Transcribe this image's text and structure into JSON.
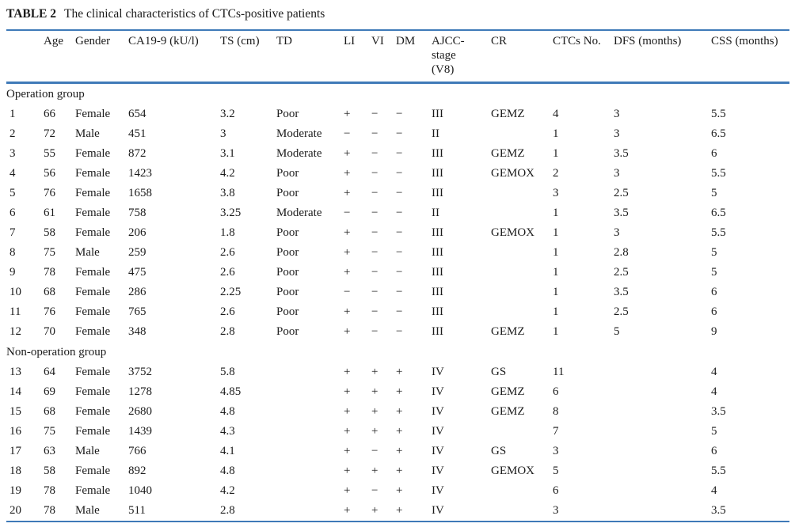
{
  "title": {
    "label": "TABLE 2",
    "text": "The clinical characteristics of CTCs-positive patients"
  },
  "colors": {
    "rule_blue": "#3f7ab8",
    "text": "#1b1b1b"
  },
  "table": {
    "columns": [
      "",
      "Age",
      "Gender",
      "CA19-9 (kU/l)",
      "TS (cm)",
      "TD",
      "LI",
      "VI",
      "DM",
      "AJCC-\nstage\n(V8)",
      "CR",
      "CTCs No.",
      "DFS (months)",
      "CSS (months)"
    ],
    "column_keys": [
      "num",
      "age",
      "gender",
      "ca19-9",
      "ts",
      "td",
      "li",
      "vi",
      "dm",
      "ajcc-stage",
      "cr",
      "ctcs-no",
      "dfs",
      "css"
    ],
    "groups": [
      {
        "label": "Operation group",
        "rows": [
          [
            "1",
            "66",
            "Female",
            "654",
            "3.2",
            "Poor",
            "+",
            "−",
            "−",
            "III",
            "GEMZ",
            "4",
            "3",
            "5.5"
          ],
          [
            "2",
            "72",
            "Male",
            "451",
            "3",
            "Moderate",
            "−",
            "−",
            "−",
            "II",
            "",
            "1",
            "3",
            "6.5"
          ],
          [
            "3",
            "55",
            "Female",
            "872",
            "3.1",
            "Moderate",
            "+",
            "−",
            "−",
            "III",
            "GEMZ",
            "1",
            "3.5",
            "6"
          ],
          [
            "4",
            "56",
            "Female",
            "1423",
            "4.2",
            "Poor",
            "+",
            "−",
            "−",
            "III",
            "GEMOX",
            "2",
            "3",
            "5.5"
          ],
          [
            "5",
            "76",
            "Female",
            "1658",
            "3.8",
            "Poor",
            "+",
            "−",
            "−",
            "III",
            "",
            "3",
            "2.5",
            "5"
          ],
          [
            "6",
            "61",
            "Female",
            "758",
            "3.25",
            "Moderate",
            "−",
            "−",
            "−",
            "II",
            "",
            "1",
            "3.5",
            "6.5"
          ],
          [
            "7",
            "58",
            "Female",
            "206",
            "1.8",
            "Poor",
            "+",
            "−",
            "−",
            "III",
            "GEMOX",
            "1",
            "3",
            "5.5"
          ],
          [
            "8",
            "75",
            "Male",
            "259",
            "2.6",
            "Poor",
            "+",
            "−",
            "−",
            "III",
            "",
            "1",
            "2.8",
            "5"
          ],
          [
            "9",
            "78",
            "Female",
            "475",
            "2.6",
            "Poor",
            "+",
            "−",
            "−",
            "III",
            "",
            "1",
            "2.5",
            "5"
          ],
          [
            "10",
            "68",
            "Female",
            "286",
            "2.25",
            "Poor",
            "−",
            "−",
            "−",
            "III",
            "",
            "1",
            "3.5",
            "6"
          ],
          [
            "11",
            "76",
            "Female",
            "765",
            "2.6",
            "Poor",
            "+",
            "−",
            "−",
            "III",
            "",
            "1",
            "2.5",
            "6"
          ],
          [
            "12",
            "70",
            "Female",
            "348",
            "2.8",
            "Poor",
            "+",
            "−",
            "−",
            "III",
            "GEMZ",
            "1",
            "5",
            "9"
          ]
        ]
      },
      {
        "label": "Non-operation group",
        "rows": [
          [
            "13",
            "64",
            "Female",
            "3752",
            "5.8",
            "",
            "+",
            "+",
            "+",
            "IV",
            "GS",
            "11",
            "",
            "4"
          ],
          [
            "14",
            "69",
            "Female",
            "1278",
            "4.85",
            "",
            "+",
            "+",
            "+",
            "IV",
            "GEMZ",
            "6",
            "",
            "4"
          ],
          [
            "15",
            "68",
            "Female",
            "2680",
            "4.8",
            "",
            "+",
            "+",
            "+",
            "IV",
            "GEMZ",
            "8",
            "",
            "3.5"
          ],
          [
            "16",
            "75",
            "Female",
            "1439",
            "4.3",
            "",
            "+",
            "+",
            "+",
            "IV",
            "",
            "7",
            "",
            "5"
          ],
          [
            "17",
            "63",
            "Male",
            "766",
            "4.1",
            "",
            "+",
            "−",
            "+",
            "IV",
            "GS",
            "3",
            "",
            "6"
          ],
          [
            "18",
            "58",
            "Female",
            "892",
            "4.8",
            "",
            "+",
            "+",
            "+",
            "IV",
            "GEMOX",
            "5",
            "",
            "5.5"
          ],
          [
            "19",
            "78",
            "Female",
            "1040",
            "4.2",
            "",
            "+",
            "−",
            "+",
            "IV",
            "",
            "6",
            "",
            "4"
          ],
          [
            "20",
            "78",
            "Male",
            "511",
            "2.8",
            "",
            "+",
            "+",
            "+",
            "IV",
            "",
            "3",
            "",
            "3.5"
          ]
        ]
      }
    ]
  }
}
